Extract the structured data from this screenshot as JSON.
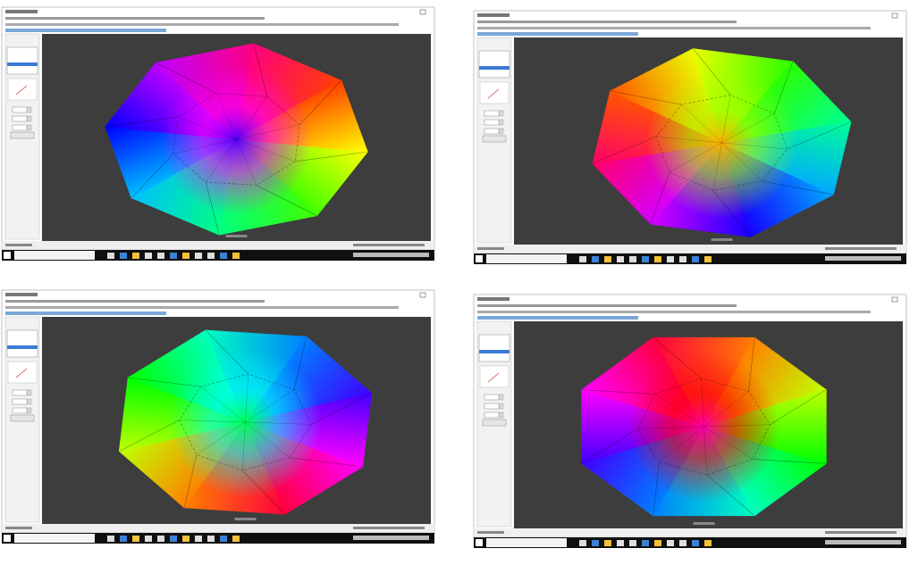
{
  "panels": [
    {},
    {},
    {},
    {}
  ]
}
